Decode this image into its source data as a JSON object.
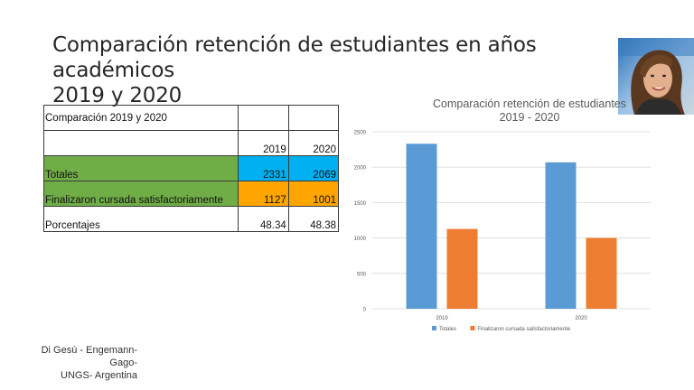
{
  "slide": {
    "title_line1": "Comparación retención de estudiantes en años académicos",
    "title_line2": "2019 y 2020"
  },
  "table": {
    "caption": "Comparación 2019 y 2020",
    "years": [
      "2019",
      "2020"
    ],
    "rows": [
      {
        "label": "Totales",
        "values": [
          "2331",
          "2069"
        ]
      },
      {
        "label": "Finalizaron cursada satisfactoriamente",
        "values": [
          "1127",
          "1001"
        ]
      },
      {
        "label": "Porcentajes",
        "values": [
          "48.34",
          "48.38"
        ]
      }
    ]
  },
  "colors": {
    "totales": "#5b9bd5",
    "finalizaron": "#ed7d31",
    "table_green": "#70ad47",
    "table_blue": "#00b0f0",
    "table_orange": "#ffa500"
  },
  "chart_data": {
    "type": "bar",
    "title_line1": "Comparación retención de estudiantes",
    "title_line2": "2019 - 2020",
    "categories": [
      "2019",
      "2020"
    ],
    "series": [
      {
        "name": "Totales",
        "values": [
          2331,
          2069
        ]
      },
      {
        "name": "Finalizaron cursada satisfactoriamente",
        "values": [
          1127,
          1001
        ]
      }
    ],
    "ylim": [
      0,
      2500
    ],
    "yticks": [
      "0",
      "500",
      "1000",
      "1500",
      "2000",
      "2500"
    ],
    "grid": true,
    "legend": "bottom"
  },
  "author": {
    "line1": "Di Gesú - Engemann-",
    "line2": "Gago-",
    "line3": "UNGS- Argentina"
  }
}
